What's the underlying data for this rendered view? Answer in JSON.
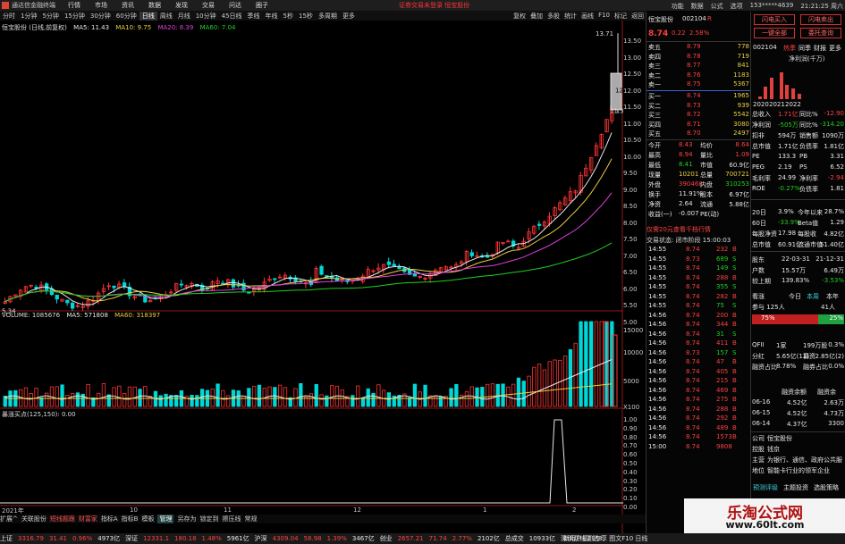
{
  "window": {
    "title": "通达信金融终端",
    "menus": [
      "行情",
      "市场",
      "资讯",
      "数据",
      "发现",
      "交易",
      "问达",
      "圈子"
    ],
    "promo": "证券交易未登录  恒宝股份",
    "right_items": [
      "功能",
      "数据",
      "公式",
      "选项",
      "153*****4639",
      "21:21:25 周六"
    ]
  },
  "toolbar": {
    "periods": [
      "分时",
      "1分钟",
      "5分钟",
      "15分钟",
      "30分钟",
      "60分钟",
      "日线",
      "周线",
      "月线",
      "10分钟",
      "45日线",
      "季线",
      "年线",
      "5秒",
      "15秒",
      "多周期",
      "更多"
    ],
    "active": "日线",
    "right": [
      "复权",
      "叠加",
      "多股",
      "统计",
      "画线",
      "F10",
      "标记",
      "返回"
    ]
  },
  "chart": {
    "title": "恒宝股份 (日线,前复权)",
    "ma": [
      {
        "label": "MA5: 11.43",
        "color": "#e8e8e8"
      },
      {
        "label": "MA10: 9.75",
        "color": "#e8d040"
      },
      {
        "label": "MA20: 8.39",
        "color": "#e040e0"
      },
      {
        "label": "MA60: 7.04",
        "color": "#20d020"
      }
    ],
    "high_label": "13.71",
    "low_label": "5.34",
    "ladder_label": "12",
    "ladder_label2": "11.38"
  },
  "volume": {
    "title": "VOLUME: 1085676",
    "ma5": "MA5: 571808",
    "ma60": "MA60: 318397"
  },
  "indicator": {
    "title": "暴涨买点(125,150): 0.00"
  },
  "axis": {
    "price": [
      "13.50",
      "13.00",
      "12.50",
      "12.00",
      "11.50",
      "11.00",
      "10.50",
      "10.00",
      "9.50",
      "9.00",
      "8.50",
      "8.00",
      "7.50",
      "7.00",
      "6.50",
      "6.00",
      "5.50",
      "5.00"
    ],
    "volume": [
      "15000",
      "10000",
      "5000",
      "X100"
    ],
    "indicator": [
      "1.00",
      "0.90",
      "0.80",
      "0.70",
      "0.60",
      "0.50",
      "0.40",
      "0.30",
      "0.20",
      "0.10",
      "0.00"
    ],
    "dates": [
      {
        "label": "2021年"
      },
      {
        "label": "10"
      },
      {
        "label": "11"
      },
      {
        "label": "12"
      },
      {
        "label": "1"
      },
      {
        "label": "2"
      }
    ]
  },
  "bottom_tabs": [
    "扩展^",
    "关联股份",
    "短线题跟",
    "财富家",
    "指标A",
    "指标B",
    "模板",
    "管理",
    "另存为",
    "锁定到",
    "擦压线",
    "常规"
  ],
  "status": {
    "items": [
      {
        "t": "上证",
        "c": "white"
      },
      {
        "t": "3316.79",
        "c": "red"
      },
      {
        "t": "31.41",
        "c": "red"
      },
      {
        "t": "0.96%",
        "c": "red"
      },
      {
        "t": "4973亿",
        "c": "white"
      },
      {
        "t": "深证",
        "c": "white"
      },
      {
        "t": "12331.1",
        "c": "red"
      },
      {
        "t": "180.18",
        "c": "red"
      },
      {
        "t": "1.48%",
        "c": "red"
      },
      {
        "t": "5961亿",
        "c": "white"
      },
      {
        "t": "沪深",
        "c": "white"
      },
      {
        "t": "4309.04",
        "c": "red"
      },
      {
        "t": "58.98",
        "c": "red"
      },
      {
        "t": "1.39%",
        "c": "red"
      },
      {
        "t": "3467亿",
        "c": "white"
      },
      {
        "t": "创业",
        "c": "white"
      },
      {
        "t": "2657.21",
        "c": "red"
      },
      {
        "t": "71.74",
        "c": "red"
      },
      {
        "t": "2.77%",
        "c": "red"
      },
      {
        "t": "2102亿",
        "c": "white"
      },
      {
        "t": "总成交",
        "c": "white"
      },
      {
        "t": "10933亿",
        "c": "white"
      },
      {
        "t": "深圳双线主站3",
        "c": "white"
      }
    ],
    "promo": "新用户福利专享  图文F10  日线"
  },
  "quote": {
    "name": "恒宝股份",
    "code": "002104",
    "badge": "R",
    "price": "8.74",
    "change": "0.22",
    "pct": "2.58%",
    "asks": [
      {
        "lab": "卖五",
        "p": "8.79",
        "v": "778"
      },
      {
        "lab": "卖四",
        "p": "8.78",
        "v": "719"
      },
      {
        "lab": "卖三",
        "p": "8.77",
        "v": "841"
      },
      {
        "lab": "卖二",
        "p": "8.76",
        "v": "1183"
      },
      {
        "lab": "卖一",
        "p": "8.75",
        "v": "5367"
      }
    ],
    "bids": [
      {
        "lab": "买一",
        "p": "8.74",
        "v": "1965"
      },
      {
        "lab": "买二",
        "p": "8.73",
        "v": "939"
      },
      {
        "lab": "买三",
        "p": "8.72",
        "v": "5542"
      },
      {
        "lab": "买四",
        "p": "8.71",
        "v": "3080"
      },
      {
        "lab": "买五",
        "p": "8.70",
        "v": "2497"
      }
    ],
    "stats": [
      [
        "今开",
        "8.43",
        "均价",
        "8.64"
      ],
      [
        "最高",
        "8.94",
        "量比",
        "1.09"
      ],
      [
        "最低",
        "8.41",
        "市值",
        "60.9亿"
      ],
      [
        "现量",
        "10201",
        "总量",
        "700721"
      ],
      [
        "外盘",
        "390468",
        "内盘",
        "310253"
      ],
      [
        "换手",
        "11.91%",
        "股本",
        "6.97亿"
      ],
      [
        "净资",
        "2.64",
        "流通",
        "5.88亿"
      ],
      [
        "收益(一)",
        "-0.007",
        "PE(动)",
        ""
      ]
    ],
    "ad": "仅需20元查看千档行情",
    "state": "交易状态: 闭市阶段 15:00:03",
    "ticks": [
      [
        "14:55",
        "8.74",
        "232",
        "B"
      ],
      [
        "14:55",
        "8.73",
        "689",
        "S"
      ],
      [
        "14:55",
        "8.74",
        "149",
        "S"
      ],
      [
        "14:55",
        "8.74",
        "288",
        "B"
      ],
      [
        "14:55",
        "8.74",
        "355",
        "S"
      ],
      [
        "14:55",
        "8.74",
        "282",
        "B"
      ],
      [
        "14:55",
        "8.74",
        "75",
        "S"
      ],
      [
        "14:56",
        "8.74",
        "200",
        "B"
      ],
      [
        "14:56",
        "8.74",
        "344",
        "B"
      ],
      [
        "14:56",
        "8.74",
        "31",
        "S"
      ],
      [
        "14:56",
        "8.74",
        "411",
        "B"
      ],
      [
        "14:56",
        "8.73",
        "157",
        "S"
      ],
      [
        "14:56",
        "8.74",
        "47",
        "B"
      ],
      [
        "14:56",
        "8.74",
        "405",
        "B"
      ],
      [
        "14:56",
        "8.74",
        "215",
        "B"
      ],
      [
        "14:56",
        "8.74",
        "469",
        "B"
      ],
      [
        "14:56",
        "8.74",
        "275",
        "B"
      ],
      [
        "14:56",
        "8.74",
        "288",
        "B"
      ],
      [
        "14:56",
        "8.74",
        "292",
        "B"
      ],
      [
        "14:56",
        "8.74",
        "489",
        "B"
      ],
      [
        "14:56",
        "8.74",
        "1573",
        "B"
      ],
      [
        "15:00",
        "8.74",
        "9808",
        ""
      ]
    ]
  },
  "right_panel": {
    "buttons": [
      "闪电买入",
      "闪电卖出",
      "一键全部",
      "委托查询"
    ],
    "code": "002104",
    "tabs": [
      "热季",
      "同季",
      "财报",
      "更多"
    ],
    "unit": "净利润(千万)",
    "years": [
      "2020",
      "2021",
      "2022"
    ],
    "fin": [
      [
        "总收入",
        "1.71亿",
        "同比%",
        "-12.90"
      ],
      [
        "净利润",
        "-505万",
        "同比%",
        "-314.20"
      ],
      [
        "扣非",
        "594万",
        "销售额",
        "1090万"
      ],
      [
        "总市值",
        "1.71亿",
        "负债率",
        "1.81亿"
      ],
      [
        "PE",
        "133.3",
        "PB",
        "3.31"
      ],
      [
        "PEG",
        "2.19",
        "PS",
        "6.52"
      ],
      [
        "毛利率",
        "24.99",
        "净利率",
        "-2.94"
      ],
      [
        "ROE",
        "-0.27%",
        "负债率",
        "1.81"
      ]
    ],
    "perf": [
      [
        "20日",
        "3.9%",
        "今年以来",
        "28.7%"
      ],
      [
        "60日",
        "-33.9%",
        "Beta值",
        "1.29"
      ],
      [
        "每股净资",
        "17.98",
        "每股收",
        "4.82亿"
      ],
      [
        "总市值",
        "60.91亿",
        "流通市值",
        "51.40亿"
      ]
    ],
    "hold": [
      [
        "股东",
        "22-03-31",
        "21-12-31"
      ],
      [
        "户数",
        "15.57万",
        "6.49万"
      ],
      [
        "较上期",
        "139.83%",
        "-3.53%"
      ]
    ],
    "vote": {
      "label": "看涨",
      "today": "今日",
      "week": "本周",
      "year": "本年",
      "count": "参与 125人",
      "count2": "41人",
      "up": "75%",
      "down": "25%"
    },
    "misc": [
      [
        "QFII",
        "1家",
        "199万股",
        "0.3%"
      ],
      [
        "分红",
        "5.65亿(11)",
        "募资",
        "2.85亿(2)"
      ],
      [
        "融资占比",
        "8.78%",
        "融券占比",
        "0.0%"
      ]
    ],
    "margin_head": [
      "",
      "融资余额",
      "融资余"
    ],
    "margin": [
      [
        "06-16",
        "4.52亿",
        "2.63万"
      ],
      [
        "06-15",
        "4.52亿",
        "4.73万"
      ],
      [
        "06-14",
        "4.37亿",
        "3300"
      ]
    ],
    "company": [
      [
        "公司",
        "恒宝股份"
      ],
      [
        "控股",
        "钱京"
      ],
      [
        "主营",
        "为银行、通信、政府公共服"
      ],
      [
        "地位",
        "智能卡行业的领军企业"
      ]
    ],
    "links": [
      "预测评级",
      "主题投资",
      "选股策略"
    ],
    "watermark": {
      "line1": "乐淘公式网",
      "line2": "www.60lt.com"
    }
  },
  "colors": {
    "up": "#ff3333",
    "down": "#00d8d8",
    "ma5": "#e8e8e8",
    "ma10": "#e8d040",
    "ma20": "#e040e0",
    "ma60": "#20d020"
  }
}
